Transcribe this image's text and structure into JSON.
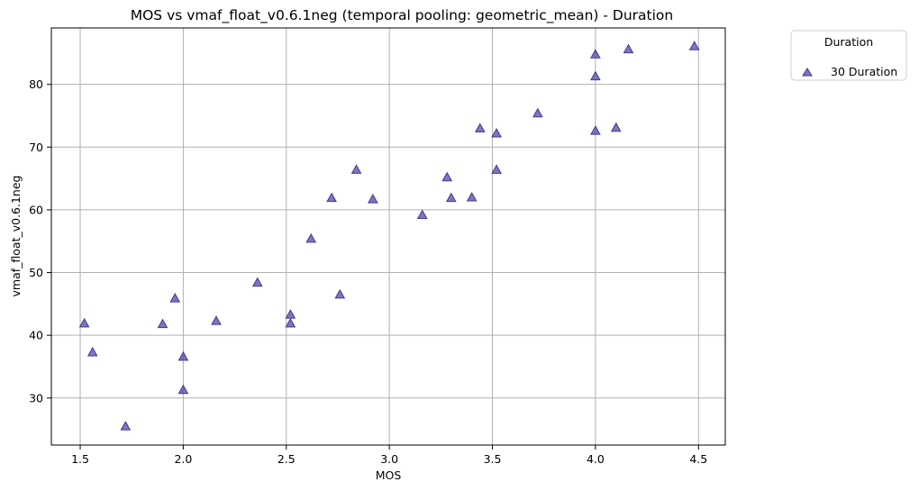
{
  "chart_data": {
    "type": "scatter",
    "title": "MOS vs vmaf_float_v0.6.1neg (temporal pooling: geometric_mean) - Duration",
    "xlabel": "MOS",
    "ylabel": "vmaf_float_v0.6.1neg",
    "xlim": [
      1.36,
      4.63
    ],
    "ylim": [
      22.5,
      89.0
    ],
    "xticks": [
      1.5,
      2.0,
      2.5,
      3.0,
      3.5,
      4.0,
      4.5
    ],
    "xtick_labels": [
      "1.5",
      "2.0",
      "2.5",
      "3.0",
      "3.5",
      "4.0",
      "4.5"
    ],
    "yticks": [
      30,
      40,
      50,
      60,
      70,
      80
    ],
    "ytick_labels": [
      "30",
      "40",
      "50",
      "60",
      "70",
      "80"
    ],
    "grid": true,
    "legend": {
      "title": "Duration",
      "placement": "outside-top-right"
    },
    "series": [
      {
        "name": "30 Duration",
        "marker": "triangle-up",
        "color": "#5b54b0",
        "edge_color": "#3f3a8f",
        "x": [
          1.52,
          1.56,
          1.72,
          1.9,
          1.96,
          2.0,
          2.0,
          2.16,
          2.36,
          2.52,
          2.52,
          2.62,
          2.72,
          2.76,
          2.84,
          2.92,
          3.16,
          3.28,
          3.3,
          3.4,
          3.44,
          3.52,
          3.52,
          3.72,
          4.0,
          4.0,
          4.0,
          4.1,
          4.16,
          4.48
        ],
        "y": [
          41.9,
          37.3,
          25.5,
          41.8,
          45.9,
          36.6,
          31.3,
          42.3,
          48.4,
          43.3,
          41.9,
          55.4,
          61.9,
          46.5,
          66.4,
          61.7,
          59.2,
          65.2,
          61.9,
          62.0,
          73.0,
          72.2,
          66.4,
          75.4,
          84.8,
          81.3,
          72.6,
          73.1,
          85.6,
          86.1
        ]
      }
    ]
  }
}
